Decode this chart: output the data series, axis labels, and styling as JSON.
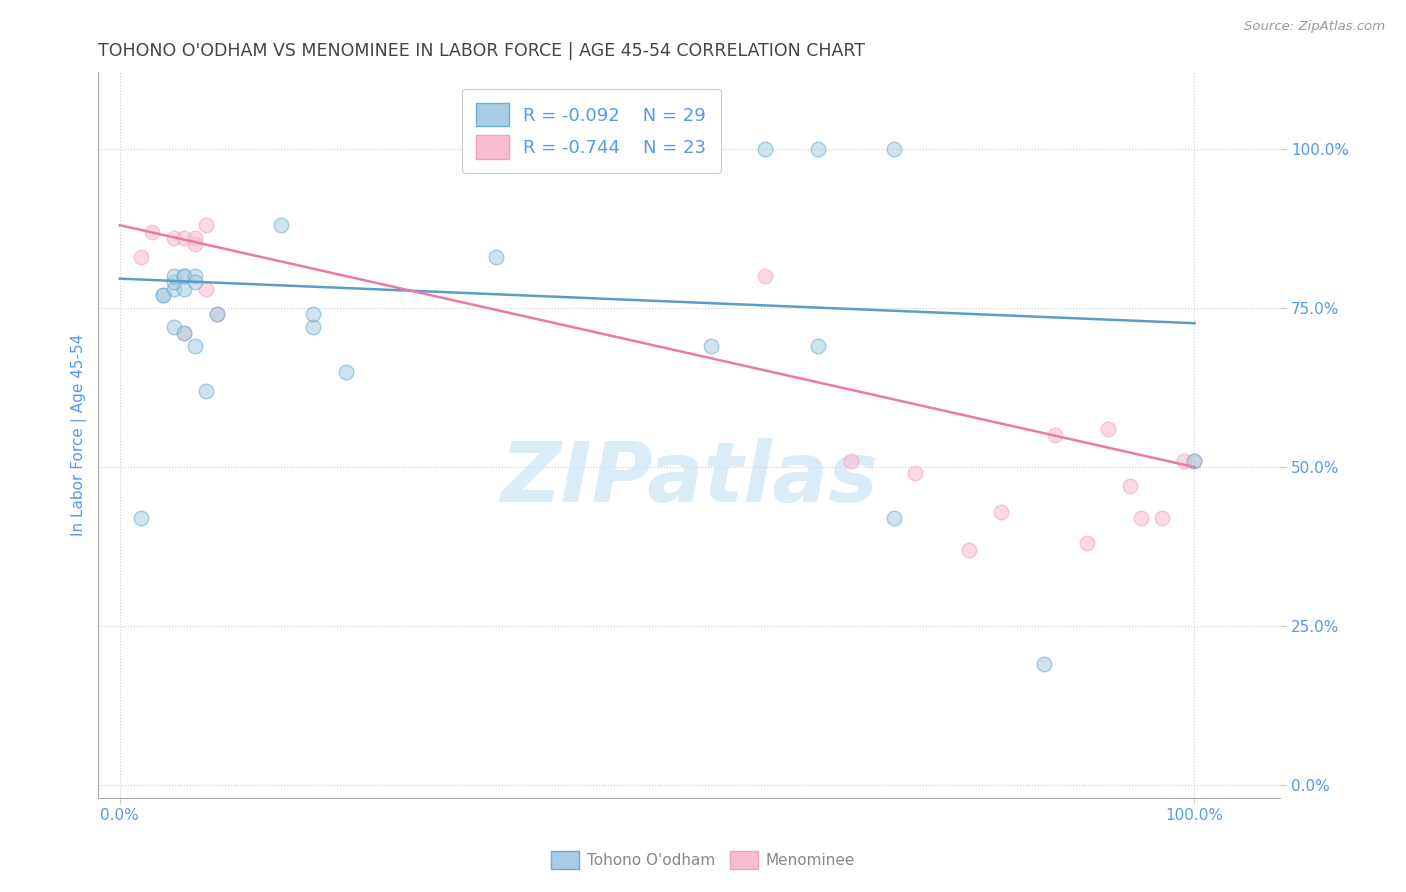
{
  "title": "TOHONO O'ODHAM VS MENOMINEE IN LABOR FORCE | AGE 45-54 CORRELATION CHART",
  "source": "Source: ZipAtlas.com",
  "ylabel": "In Labor Force | Age 45-54",
  "legend_label1": "Tohono O'odham",
  "legend_label2": "Menominee",
  "R1": "-0.092",
  "N1": "29",
  "R2": "-0.744",
  "N2": "23",
  "blue_fill_color": "#a8cce3",
  "pink_fill_color": "#f9bdd0",
  "blue_edge_color": "#6aacd5",
  "pink_edge_color": "#f5a0bb",
  "blue_line_color": "#5b9dc9",
  "pink_line_color": "#e87aaa",
  "title_color": "#444444",
  "axis_label_color": "#5599ee",
  "tick_color": "#5599ee",
  "watermark_color": "#cce4f5",
  "watermark": "ZIPatlas",
  "blue_scatter_x": [
    0.02,
    0.04,
    0.04,
    0.05,
    0.05,
    0.05,
    0.05,
    0.06,
    0.06,
    0.06,
    0.06,
    0.07,
    0.07,
    0.07,
    0.08,
    0.09,
    0.15,
    0.18,
    0.18,
    0.21,
    0.35,
    0.55,
    0.6,
    0.65,
    0.65,
    0.72,
    0.72,
    0.86,
    1.0
  ],
  "blue_scatter_y": [
    0.42,
    0.77,
    0.77,
    0.78,
    0.79,
    0.8,
    0.72,
    0.8,
    0.78,
    0.8,
    0.71,
    0.8,
    0.79,
    0.69,
    0.62,
    0.74,
    0.88,
    0.72,
    0.74,
    0.65,
    0.83,
    0.69,
    1.0,
    1.0,
    0.69,
    1.0,
    0.42,
    0.19,
    0.51
  ],
  "pink_scatter_x": [
    0.02,
    0.03,
    0.05,
    0.06,
    0.06,
    0.07,
    0.07,
    0.08,
    0.08,
    0.09,
    0.6,
    0.68,
    0.74,
    0.79,
    0.82,
    0.87,
    0.9,
    0.92,
    0.94,
    0.95,
    0.97,
    0.99,
    1.0
  ],
  "pink_scatter_y": [
    0.83,
    0.87,
    0.86,
    0.86,
    0.71,
    0.86,
    0.85,
    0.78,
    0.88,
    0.74,
    0.8,
    0.51,
    0.49,
    0.37,
    0.43,
    0.55,
    0.38,
    0.56,
    0.47,
    0.42,
    0.42,
    0.51,
    0.51
  ],
  "blue_line_x": [
    0.0,
    1.0
  ],
  "blue_line_y": [
    0.796,
    0.726
  ],
  "pink_line_x": [
    0.0,
    1.0
  ],
  "pink_line_y": [
    0.88,
    0.5
  ],
  "grid_color": "#cccccc",
  "background_color": "#ffffff",
  "scatter_size": 110,
  "scatter_alpha": 0.55,
  "scatter_linewidth": 1.0,
  "x_lim": [
    -0.02,
    1.08
  ],
  "y_lim": [
    -0.02,
    1.12
  ],
  "y_ticks": [
    0.0,
    0.25,
    0.5,
    0.75,
    1.0
  ],
  "y_tick_labels": [
    "0.0%",
    "25.0%",
    "50.0%",
    "75.0%",
    "100.0%"
  ],
  "x_ticks": [
    0.0,
    1.0
  ],
  "x_tick_labels": [
    "0.0%",
    "100.0%"
  ]
}
